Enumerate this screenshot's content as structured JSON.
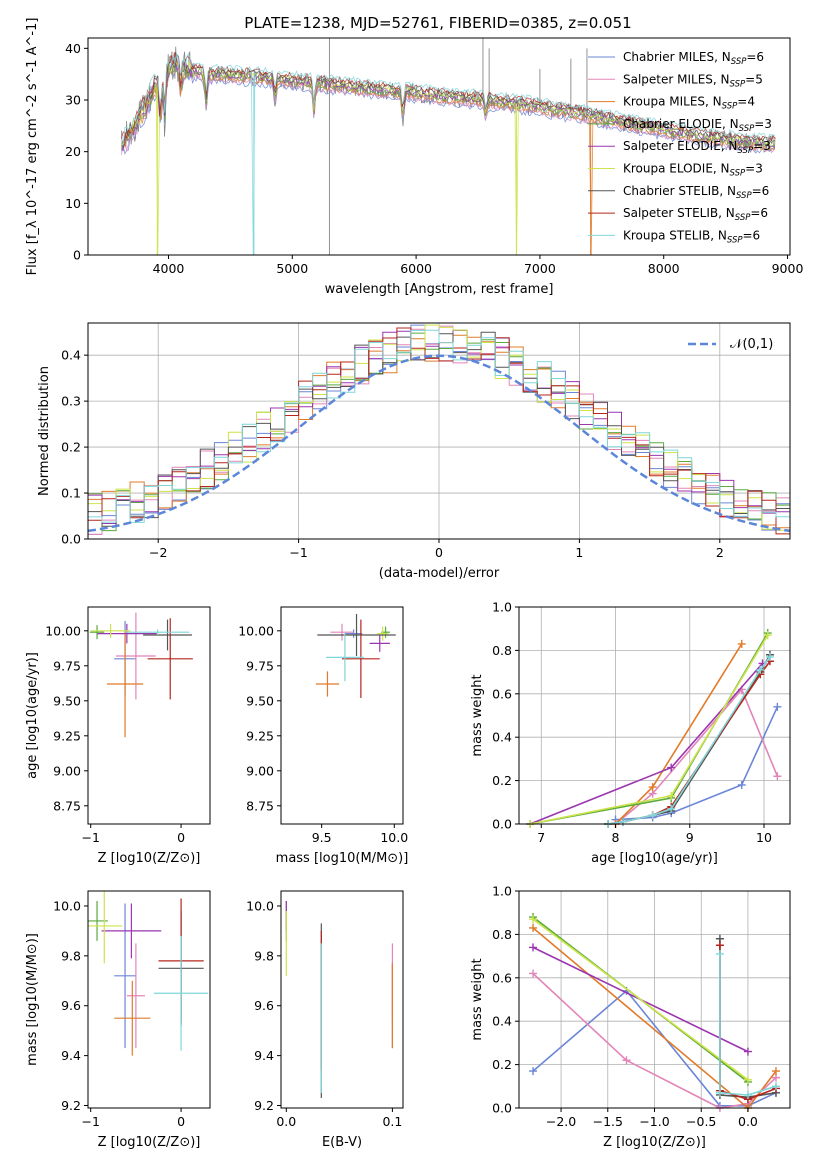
{
  "figure": {
    "title": "PLATE=1238, MJD=52761, FIBERID=0385, z=0.051"
  },
  "legend_entries": [
    {
      "name": "Chabrier MILES, N_SSP=6",
      "lib": "MILES",
      "imf": "Chabrier",
      "nssp": 6,
      "color": "#6b86d6"
    },
    {
      "name": "Salpeter MILES, N_SSP=5",
      "lib": "MILES",
      "imf": "Salpeter",
      "nssp": 5,
      "color": "#e285b8"
    },
    {
      "name": "Kroupa MILES, N_SSP=4",
      "lib": "MILES",
      "imf": "Kroupa",
      "nssp": 4,
      "color": "#e07b2b"
    },
    {
      "name": "Chabrier ELODIE, N_SSP=3",
      "lib": "ELODIE",
      "imf": "Chabrier",
      "nssp": 3,
      "color": "#5aaa3c"
    },
    {
      "name": "Salpeter ELODIE, N_SSP=3",
      "lib": "ELODIE",
      "imf": "Salpeter",
      "nssp": 3,
      "color": "#9b35b0"
    },
    {
      "name": "Kroupa ELODIE, N_SSP=3",
      "lib": "ELODIE",
      "imf": "Kroupa",
      "nssp": 3,
      "color": "#cde34b"
    },
    {
      "name": "Chabrier STELIB, N_SSP=6",
      "lib": "STELIB",
      "imf": "Chabrier",
      "nssp": 6,
      "color": "#555555"
    },
    {
      "name": "Salpeter STELIB, N_SSP=6",
      "lib": "STELIB",
      "imf": "Salpeter",
      "nssp": 6,
      "color": "#b5261e"
    },
    {
      "name": "Kroupa STELIB, N_SSP=6",
      "lib": "STELIB",
      "imf": "Kroupa",
      "nssp": 6,
      "color": "#7fd6d9"
    }
  ],
  "chart_data": [
    {
      "id": "spectrum",
      "type": "line",
      "xlabel": "wavelength [Angstrom, rest frame]",
      "ylabel": "Flux [f_λ 10^-17 erg cm^-2 s^-1 A^-1]",
      "xlim": [
        3350,
        9020
      ],
      "ylim": [
        0,
        42
      ],
      "xticks": [
        4000,
        5000,
        6000,
        7000,
        8000,
        9000
      ],
      "yticks": [
        0,
        10,
        20,
        30,
        40
      ],
      "legend_position": "upper right",
      "data_color": "#888888",
      "continuum": [
        [
          3620,
          21
        ],
        [
          3700,
          24
        ],
        [
          3800,
          28
        ],
        [
          3900,
          33
        ],
        [
          3960,
          34
        ],
        [
          4000,
          36
        ],
        [
          4050,
          37
        ],
        [
          4150,
          36
        ],
        [
          4300,
          35
        ],
        [
          4500,
          34.8
        ],
        [
          4700,
          34.5
        ],
        [
          4900,
          34
        ],
        [
          5100,
          33.5
        ],
        [
          5300,
          33
        ],
        [
          5500,
          32.5
        ],
        [
          5700,
          32
        ],
        [
          5900,
          31.6
        ],
        [
          6100,
          31
        ],
        [
          6300,
          30.5
        ],
        [
          6500,
          30.1
        ],
        [
          6700,
          29.5
        ],
        [
          6900,
          29
        ],
        [
          7100,
          28.2
        ],
        [
          7300,
          27.4
        ],
        [
          7400,
          27
        ],
        [
          7500,
          26.5
        ],
        [
          7700,
          25.5
        ],
        [
          7900,
          24.6
        ],
        [
          8100,
          23.8
        ],
        [
          8300,
          23
        ],
        [
          8500,
          22.3
        ],
        [
          8700,
          21.8
        ],
        [
          8900,
          21.4
        ]
      ],
      "absorption_lines": [
        {
          "wavelength": 3934,
          "depth": 9
        },
        {
          "wavelength": 3968,
          "depth": 8
        },
        {
          "wavelength": 4101,
          "depth": 5
        },
        {
          "wavelength": 4304,
          "depth": 6
        },
        {
          "wavelength": 4861,
          "depth": 4
        },
        {
          "wavelength": 5175,
          "depth": 6
        },
        {
          "wavelength": 5893,
          "depth": 5
        },
        {
          "wavelength": 6563,
          "depth": 3
        }
      ],
      "masked_dips": [
        {
          "wavelength": 3910,
          "series": "Kroupa ELODIE"
        },
        {
          "wavelength": 4690,
          "series": "Kroupa STELIB"
        },
        {
          "wavelength": 6810,
          "series": "Kroupa ELODIE"
        },
        {
          "wavelength": 7410,
          "series": "Kroupa MILES"
        }
      ],
      "data_spikes": [
        {
          "wavelength": 5300,
          "top": 42,
          "bottom": 0
        },
        {
          "wavelength": 6540,
          "top": 42,
          "bottom": 30
        },
        {
          "wavelength": 6590,
          "top": 40,
          "bottom": 30
        },
        {
          "wavelength": 7000,
          "top": 36,
          "bottom": 28
        },
        {
          "wavelength": 7250,
          "top": 38,
          "bottom": 27
        },
        {
          "wavelength": 7380,
          "top": 40,
          "bottom": 26
        }
      ]
    },
    {
      "id": "residuals",
      "type": "histogram",
      "xlabel": "(data-model)/error",
      "ylabel": "Normed distribution",
      "xlim": [
        -2.5,
        2.5
      ],
      "ylim": [
        0,
        0.47
      ],
      "xticks": [
        -2,
        -1,
        0,
        1,
        2
      ],
      "yticks": [
        0.0,
        0.1,
        0.2,
        0.3,
        0.4
      ],
      "grid": true,
      "bin_width": 0.1,
      "reference": {
        "label": "𝒩(0,1)",
        "mean": 0,
        "sigma": 1,
        "color": "#5b86d9"
      },
      "legend_position": "upper right"
    },
    {
      "id": "age_vs_Z",
      "type": "errorbar",
      "xlabel": "Z [log10(Z/Z⊙)]",
      "ylabel": "age  [log10(age/yr)]",
      "xlim": [
        -1.03,
        0.32
      ],
      "ylim": [
        8.62,
        10.17
      ],
      "xticks": [
        -1,
        0
      ],
      "yticks": [
        8.75,
        9.0,
        9.25,
        9.5,
        9.75,
        10.0
      ],
      "points": [
        {
          "series": "Chabrier MILES",
          "x": -0.62,
          "y": 9.8,
          "xerr": 0.12,
          "yerr": 0.27
        },
        {
          "series": "Salpeter MILES",
          "x": -0.5,
          "y": 9.82,
          "xerr": 0.22,
          "yerr": 0.31
        },
        {
          "series": "Kroupa MILES",
          "x": -0.62,
          "y": 9.62,
          "xerr": 0.2,
          "yerr": 0.38
        },
        {
          "series": "Chabrier ELODIE",
          "x": -0.93,
          "y": 9.99,
          "xerr": 0.08,
          "yerr": 0.05
        },
        {
          "series": "Salpeter ELODIE",
          "x": -0.6,
          "y": 9.98,
          "xerr": 0.33,
          "yerr": 0.07
        },
        {
          "series": "Kroupa ELODIE",
          "x": -0.78,
          "y": 10.0,
          "xerr": 0.22,
          "yerr": 0.05
        },
        {
          "series": "Chabrier STELIB",
          "x": -0.15,
          "y": 9.97,
          "xerr": 0.27,
          "yerr": 0.11
        },
        {
          "series": "Salpeter STELIB",
          "x": -0.12,
          "y": 9.8,
          "xerr": 0.25,
          "yerr": 0.29
        },
        {
          "series": "Kroupa STELIB",
          "x": -0.26,
          "y": 9.99,
          "xerr": 0.35,
          "yerr": 0.02
        }
      ]
    },
    {
      "id": "age_vs_mass",
      "type": "errorbar",
      "xlabel": "mass [log10(M/M⊙)]",
      "ylabel": "",
      "xlim": [
        9.22,
        10.06
      ],
      "ylim": [
        8.62,
        10.17
      ],
      "xticks": [
        9.5,
        10.0
      ],
      "yticks": [
        8.75,
        9.0,
        9.25,
        9.5,
        9.75,
        10.0
      ],
      "points": [
        {
          "series": "Chabrier MILES",
          "x": 9.72,
          "y": 9.98,
          "xerr": 0.06,
          "yerr": 0.03
        },
        {
          "series": "Salpeter MILES",
          "x": 9.64,
          "y": 9.99,
          "xerr": 0.08,
          "yerr": 0.06
        },
        {
          "series": "Kroupa MILES",
          "x": 9.54,
          "y": 9.62,
          "xerr": 0.08,
          "yerr": 0.09
        },
        {
          "series": "Chabrier ELODIE",
          "x": 9.94,
          "y": 9.99,
          "xerr": 0.03,
          "yerr": 0.04
        },
        {
          "series": "Salpeter ELODIE",
          "x": 9.9,
          "y": 9.91,
          "xerr": 0.07,
          "yerr": 0.06
        },
        {
          "series": "Kroupa ELODIE",
          "x": 9.92,
          "y": 9.98,
          "xerr": 0.04,
          "yerr": 0.05
        },
        {
          "series": "Chabrier STELIB",
          "x": 9.74,
          "y": 9.97,
          "xerr": 0.27,
          "yerr": 0.15
        },
        {
          "series": "Salpeter STELIB",
          "x": 9.77,
          "y": 9.8,
          "xerr": 0.13,
          "yerr": 0.28
        },
        {
          "series": "Kroupa STELIB",
          "x": 9.66,
          "y": 9.81,
          "xerr": 0.13,
          "yerr": 0.17
        }
      ]
    },
    {
      "id": "weight_vs_age",
      "type": "line",
      "xlabel": "age  [log10(age/yr)]",
      "ylabel": "mass weight",
      "xlim": [
        6.7,
        10.35
      ],
      "ylim": [
        0,
        1
      ],
      "xticks": [
        7,
        8,
        9,
        10
      ],
      "yticks": [
        0.0,
        0.2,
        0.4,
        0.6,
        0.8,
        1.0
      ],
      "grid": true,
      "series": [
        {
          "name": "Chabrier MILES",
          "x": [
            8.0,
            8.5,
            8.75,
            9.7,
            10.18
          ],
          "y": [
            0.02,
            0.03,
            0.05,
            0.18,
            0.54
          ]
        },
        {
          "name": "Salpeter MILES",
          "x": [
            8.0,
            8.5,
            9.7,
            10.18
          ],
          "y": [
            0.0,
            0.14,
            0.62,
            0.22
          ]
        },
        {
          "name": "Kroupa MILES",
          "x": [
            8.0,
            8.5,
            9.7
          ],
          "y": [
            0.0,
            0.17,
            0.83
          ]
        },
        {
          "name": "Chabrier ELODIE",
          "x": [
            6.85,
            8.75,
            10.05
          ],
          "y": [
            0.0,
            0.12,
            0.88
          ]
        },
        {
          "name": "Salpeter ELODIE",
          "x": [
            6.85,
            8.75,
            9.98
          ],
          "y": [
            0.0,
            0.26,
            0.74
          ]
        },
        {
          "name": "Kroupa ELODIE",
          "x": [
            6.85,
            8.75,
            10.05
          ],
          "y": [
            0.0,
            0.13,
            0.87
          ]
        },
        {
          "name": "Chabrier STELIB",
          "x": [
            7.9,
            8.1,
            8.5,
            8.75,
            9.95,
            10.08
          ],
          "y": [
            0.0,
            0.01,
            0.04,
            0.06,
            0.7,
            0.78
          ]
        },
        {
          "name": "Salpeter STELIB",
          "x": [
            7.9,
            8.1,
            8.5,
            8.75,
            9.95,
            10.08
          ],
          "y": [
            0.0,
            0.01,
            0.04,
            0.08,
            0.69,
            0.75
          ]
        },
        {
          "name": "Kroupa STELIB",
          "x": [
            7.9,
            8.1,
            8.5,
            8.75,
            9.95,
            10.08
          ],
          "y": [
            0.0,
            0.01,
            0.04,
            0.07,
            0.71,
            0.77
          ]
        }
      ]
    },
    {
      "id": "mass_vs_Z",
      "type": "errorbar",
      "xlabel": "Z [log10(Z/Z⊙)]",
      "ylabel": "mass [log10(M/M⊙)]",
      "xlim": [
        -1.03,
        0.32
      ],
      "ylim": [
        9.19,
        10.06
      ],
      "xticks": [
        -1,
        0
      ],
      "yticks": [
        9.2,
        9.4,
        9.6,
        9.8,
        10.0
      ],
      "points": [
        {
          "series": "Chabrier MILES",
          "x": -0.62,
          "y": 9.72,
          "xerr": 0.12,
          "yerr": 0.29
        },
        {
          "series": "Salpeter MILES",
          "x": -0.5,
          "y": 9.64,
          "xerr": 0.1,
          "yerr": 0.21
        },
        {
          "series": "Kroupa MILES",
          "x": -0.54,
          "y": 9.55,
          "xerr": 0.2,
          "yerr": 0.15
        },
        {
          "series": "Chabrier ELODIE",
          "x": -0.93,
          "y": 9.94,
          "xerr": 0.12,
          "yerr": 0.08
        },
        {
          "series": "Salpeter ELODIE",
          "x": -0.55,
          "y": 9.9,
          "xerr": 0.33,
          "yerr": 0.11
        },
        {
          "series": "Kroupa ELODIE",
          "x": -0.85,
          "y": 9.92,
          "xerr": 0.2,
          "yerr": 0.15
        },
        {
          "series": "Chabrier STELIB",
          "x": 0.0,
          "y": 9.75,
          "xerr": 0.25,
          "yerr": 0.23
        },
        {
          "series": "Salpeter STELIB",
          "x": 0.0,
          "y": 9.78,
          "xerr": 0.25,
          "yerr": 0.25
        },
        {
          "series": "Kroupa STELIB",
          "x": 0.0,
          "y": 9.65,
          "xerr": 0.3,
          "yerr": 0.23
        }
      ]
    },
    {
      "id": "mass_vs_EBV",
      "type": "errorbar",
      "xlabel": "E(B-V)",
      "ylabel": "",
      "xlim": [
        -0.005,
        0.11
      ],
      "ylim": [
        9.19,
        10.06
      ],
      "xticks": [
        0.0,
        0.1
      ],
      "yticks": [
        9.2,
        9.4,
        9.6,
        9.8,
        10.0
      ],
      "points": [
        {
          "series": "Chabrier MILES",
          "x": 0.1,
          "y": 9.6,
          "xerr": 0,
          "yerr": 0.17
        },
        {
          "series": "Salpeter MILES",
          "x": 0.1,
          "y": 9.7,
          "xerr": 0,
          "yerr": 0.15
        },
        {
          "series": "Kroupa MILES",
          "x": 0.1,
          "y": 9.6,
          "xerr": 0,
          "yerr": 0.17
        },
        {
          "series": "Chabrier ELODIE",
          "x": 0.0,
          "y": 9.94,
          "xerr": 0,
          "yerr": 0.08
        },
        {
          "series": "Salpeter ELODIE",
          "x": 0.0,
          "y": 9.96,
          "xerr": 0,
          "yerr": 0.06
        },
        {
          "series": "Kroupa ELODIE",
          "x": 0.0,
          "y": 9.85,
          "xerr": 0,
          "yerr": 0.13
        },
        {
          "series": "Chabrier STELIB",
          "x": 0.033,
          "y": 9.58,
          "xerr": 0,
          "yerr": 0.35
        },
        {
          "series": "Salpeter STELIB",
          "x": 0.033,
          "y": 9.62,
          "xerr": 0,
          "yerr": 0.28
        },
        {
          "series": "Kroupa STELIB",
          "x": 0.033,
          "y": 9.55,
          "xerr": 0,
          "yerr": 0.3
        }
      ]
    },
    {
      "id": "weight_vs_Z",
      "type": "line",
      "xlabel": "Z [log10(Z/Z⊙)]",
      "ylabel": "mass weight",
      "xlim": [
        -2.45,
        0.45
      ],
      "ylim": [
        0,
        1
      ],
      "xticks": [
        -2.0,
        -1.5,
        -1.0,
        -0.5,
        0.0
      ],
      "yticks": [
        0.0,
        0.2,
        0.4,
        0.6,
        0.8,
        1.0
      ],
      "grid": true,
      "series": [
        {
          "name": "Chabrier MILES",
          "x": [
            -2.3,
            -1.3,
            -0.3,
            0.0,
            0.3
          ],
          "y": [
            0.17,
            0.54,
            0.01,
            0.01,
            0.07
          ]
        },
        {
          "name": "Salpeter MILES",
          "x": [
            -2.3,
            -1.3,
            -0.3,
            0.0,
            0.3
          ],
          "y": [
            0.62,
            0.22,
            0.0,
            0.02,
            0.14
          ]
        },
        {
          "name": "Kroupa MILES",
          "x": [
            -2.3,
            0.0,
            0.3
          ],
          "y": [
            0.83,
            0.0,
            0.17
          ]
        },
        {
          "name": "Chabrier ELODIE",
          "x": [
            -2.3,
            0.0
          ],
          "y": [
            0.88,
            0.12
          ]
        },
        {
          "name": "Salpeter ELODIE",
          "x": [
            -2.3,
            0.0
          ],
          "y": [
            0.74,
            0.26
          ]
        },
        {
          "name": "Kroupa ELODIE",
          "x": [
            -2.3,
            0.0
          ],
          "y": [
            0.87,
            0.13
          ]
        },
        {
          "name": "Chabrier STELIB",
          "x": [
            -0.3,
            -0.3,
            0.0,
            0.3
          ],
          "y": [
            0.78,
            0.06,
            0.05,
            0.07
          ]
        },
        {
          "name": "Salpeter STELIB",
          "x": [
            -0.3,
            -0.3,
            0.0,
            0.3
          ],
          "y": [
            0.75,
            0.08,
            0.04,
            0.09
          ]
        },
        {
          "name": "Kroupa STELIB",
          "x": [
            -0.3,
            -0.3,
            0.0,
            0.3
          ],
          "y": [
            0.71,
            0.07,
            0.06,
            0.1
          ]
        }
      ]
    }
  ]
}
